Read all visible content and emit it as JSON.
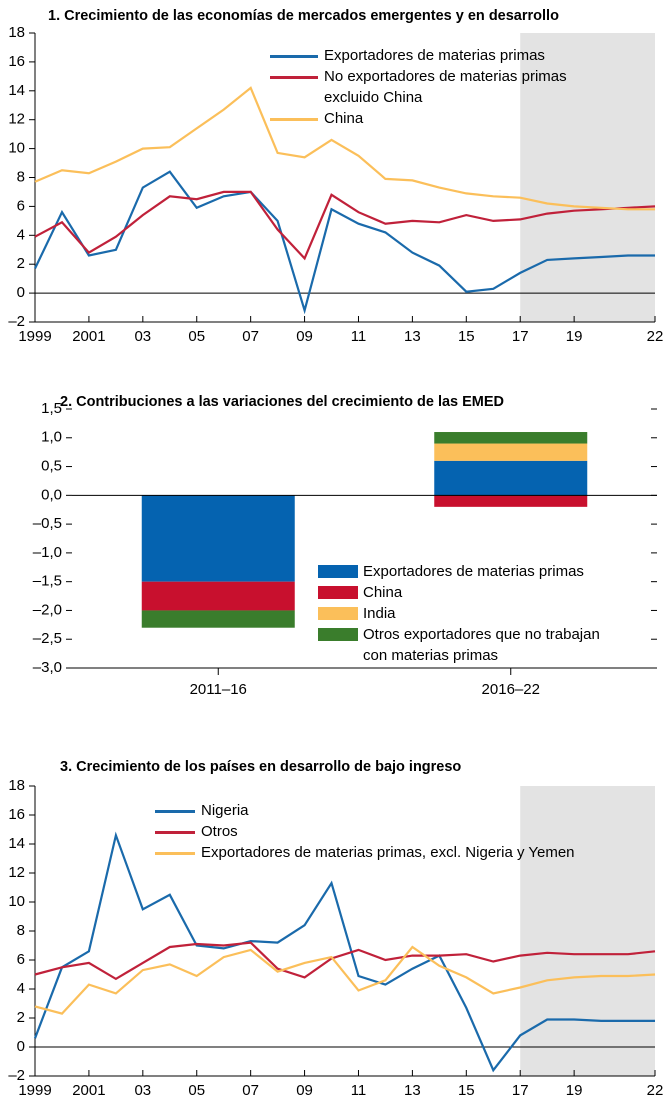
{
  "chart_data": [
    {
      "type": "line",
      "title": "1. Crecimiento de las economías de mercados emergentes y en desarrollo",
      "x": [
        1999,
        2000,
        2001,
        2002,
        2003,
        2004,
        2005,
        2006,
        2007,
        2008,
        2009,
        2010,
        2011,
        2012,
        2013,
        2014,
        2015,
        2016,
        2017,
        2018,
        2019,
        2020,
        2021,
        2022
      ],
      "series": [
        {
          "name": "Exportadores de materias primas",
          "color": "#1a6aab",
          "values": [
            1.7,
            5.6,
            2.6,
            3.0,
            7.3,
            8.4,
            5.9,
            6.7,
            7.0,
            5.0,
            -1.2,
            5.8,
            4.8,
            4.2,
            2.8,
            1.9,
            0.1,
            0.3,
            1.4,
            2.3,
            2.4,
            2.5,
            2.6,
            2.6
          ]
        },
        {
          "name": "No exportadores de materias primas excluido China",
          "color": "#c0213a",
          "values": [
            3.9,
            4.9,
            2.8,
            3.9,
            5.4,
            6.7,
            6.5,
            7.0,
            7.0,
            4.4,
            2.4,
            6.8,
            5.6,
            4.8,
            5.0,
            4.9,
            5.4,
            5.0,
            5.1,
            5.5,
            5.7,
            5.8,
            5.9,
            6.0
          ]
        },
        {
          "name": "China",
          "color": "#fbbf5a",
          "values": [
            7.7,
            8.5,
            8.3,
            9.1,
            10.0,
            10.1,
            11.4,
            12.7,
            14.2,
            9.7,
            9.4,
            10.6,
            9.5,
            7.9,
            7.8,
            7.3,
            6.9,
            6.7,
            6.6,
            6.2,
            6.0,
            5.9,
            5.8,
            5.8
          ]
        }
      ],
      "xlim": [
        1999,
        2022
      ],
      "xticks": [
        1999,
        2001,
        {
          "value": 2003,
          "label": "03"
        },
        {
          "value": 2005,
          "label": "05"
        },
        {
          "value": 2007,
          "label": "07"
        },
        {
          "value": 2009,
          "label": "09"
        },
        {
          "value": 2011,
          "label": "11"
        },
        {
          "value": 2013,
          "label": "13"
        },
        {
          "value": 2015,
          "label": "15"
        },
        {
          "value": 2017,
          "label": "17"
        },
        {
          "value": 2019,
          "label": "19"
        },
        {
          "value": 2022,
          "label": "22"
        }
      ],
      "ylim": [
        -2,
        18
      ],
      "yticks": [
        {
          "value": -2,
          "label": "–2"
        },
        0,
        2,
        4,
        6,
        8,
        10,
        12,
        14,
        16,
        18
      ],
      "shaded_range": [
        2017,
        2022
      ],
      "shade_color": "#e3e3e3"
    },
    {
      "type": "bar",
      "stacked": true,
      "title": "2. Contribuciones a las variaciones del crecimiento de las EMED",
      "categories": [
        "2011–16",
        "2016–22"
      ],
      "series": [
        {
          "name": "Exportadores de materias primas",
          "color": "#0563b0",
          "values": [
            -1.5,
            0.6
          ]
        },
        {
          "name": "China",
          "color": "#c8102e",
          "values": [
            -0.5,
            -0.2
          ]
        },
        {
          "name": "India",
          "color": "#fbbf5a",
          "values": [
            0,
            0.3
          ]
        },
        {
          "name": "Otros exportadores que no trabajan con materias primas",
          "color": "#3a7d2c",
          "values": [
            -0.3,
            0.2
          ]
        }
      ],
      "ylim": [
        -3,
        1.5
      ],
      "yticks": [
        {
          "value": -3,
          "label": "–3,0"
        },
        {
          "value": -2.5,
          "label": "–2,5"
        },
        {
          "value": -2,
          "label": "–2,0"
        },
        {
          "value": -1.5,
          "label": "–1,5"
        },
        {
          "value": -1,
          "label": "–1,0"
        },
        {
          "value": -0.5,
          "label": "–0,5"
        },
        {
          "value": 0,
          "label": "0,0"
        },
        {
          "value": 0.5,
          "label": "0,5"
        },
        {
          "value": 1,
          "label": "1,0"
        },
        {
          "value": 1.5,
          "label": "1,5"
        }
      ]
    },
    {
      "type": "line",
      "title": "3. Crecimiento de los países en desarrollo de bajo ingreso",
      "x": [
        1999,
        2000,
        2001,
        2002,
        2003,
        2004,
        2005,
        2006,
        2007,
        2008,
        2009,
        2010,
        2011,
        2012,
        2013,
        2014,
        2015,
        2016,
        2017,
        2018,
        2019,
        2020,
        2021,
        2022
      ],
      "series": [
        {
          "name": "Nigeria",
          "color": "#1a6aab",
          "values": [
            0.6,
            5.5,
            6.6,
            14.6,
            9.5,
            10.5,
            7.0,
            6.8,
            7.3,
            7.2,
            8.4,
            11.3,
            4.9,
            4.3,
            5.4,
            6.3,
            2.7,
            -1.6,
            0.8,
            1.9,
            1.9,
            1.8,
            1.8,
            1.8
          ]
        },
        {
          "name": "Otros",
          "color": "#c0213a",
          "values": [
            5.0,
            5.5,
            5.8,
            4.7,
            5.8,
            6.9,
            7.1,
            7.0,
            7.2,
            5.4,
            4.8,
            6.1,
            6.7,
            6.0,
            6.3,
            6.3,
            6.4,
            5.9,
            6.3,
            6.5,
            6.4,
            6.4,
            6.4,
            6.6
          ]
        },
        {
          "name": "Exportadores de materias primas, excl. Nigeria y Yemen",
          "color": "#fbbf5a",
          "values": [
            2.8,
            2.3,
            4.3,
            3.7,
            5.3,
            5.7,
            4.9,
            6.2,
            6.7,
            5.2,
            5.8,
            6.2,
            3.9,
            4.6,
            6.9,
            5.6,
            4.8,
            3.7,
            4.1,
            4.6,
            4.8,
            4.9,
            4.9,
            5.0
          ]
        }
      ],
      "xlim": [
        1999,
        2022
      ],
      "xticks": [
        1999,
        2001,
        {
          "value": 2003,
          "label": "03"
        },
        {
          "value": 2005,
          "label": "05"
        },
        {
          "value": 2007,
          "label": "07"
        },
        {
          "value": 2009,
          "label": "09"
        },
        {
          "value": 2011,
          "label": "11"
        },
        {
          "value": 2013,
          "label": "13"
        },
        {
          "value": 2015,
          "label": "15"
        },
        {
          "value": 2017,
          "label": "17"
        },
        {
          "value": 2019,
          "label": "19"
        },
        {
          "value": 2022,
          "label": "22"
        }
      ],
      "ylim": [
        -2,
        18
      ],
      "yticks": [
        {
          "value": -2,
          "label": "–2"
        },
        0,
        2,
        4,
        6,
        8,
        10,
        12,
        14,
        16,
        18
      ],
      "shaded_range": [
        2017,
        2022
      ],
      "shade_color": "#e3e3e3"
    }
  ]
}
